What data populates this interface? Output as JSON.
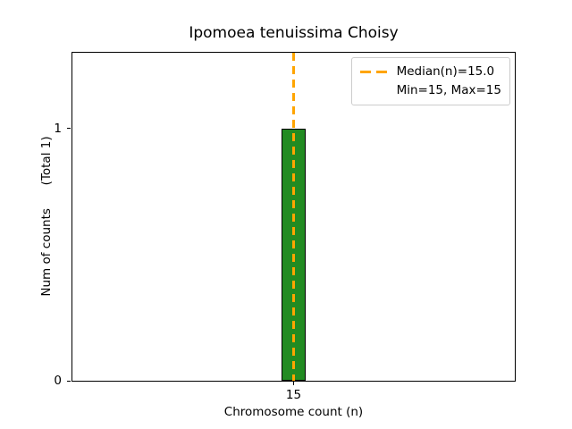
{
  "chart_data": {
    "type": "bar",
    "title": "Ipomoea tenuissima Choisy",
    "xlabel": "Chromosome count (n)",
    "ylabel": "Num of counts      (Total 1)",
    "x": [
      15
    ],
    "values": [
      1
    ],
    "bar_width": 0.5,
    "xlim": [
      10.4,
      19.6
    ],
    "ylim": [
      0,
      1.3
    ],
    "xticks": [
      15
    ],
    "yticks": [
      0,
      1
    ],
    "median": 15.0,
    "min": 15,
    "max": 15,
    "grid": false,
    "legend": {
      "position": "upper right",
      "entries": [
        {
          "label": "Median(n)=15.0",
          "marker": "dashed-line",
          "color": "#FFA500"
        },
        {
          "label": "Min=15, Max=15",
          "marker": "none",
          "color": ""
        }
      ]
    },
    "colors": {
      "bar_fill": "#228B22",
      "bar_edge": "#000000",
      "median_line": "#FFA500",
      "axes": "#000000",
      "background": "#FFFFFF",
      "legend_border": "#CCCCCC"
    }
  }
}
